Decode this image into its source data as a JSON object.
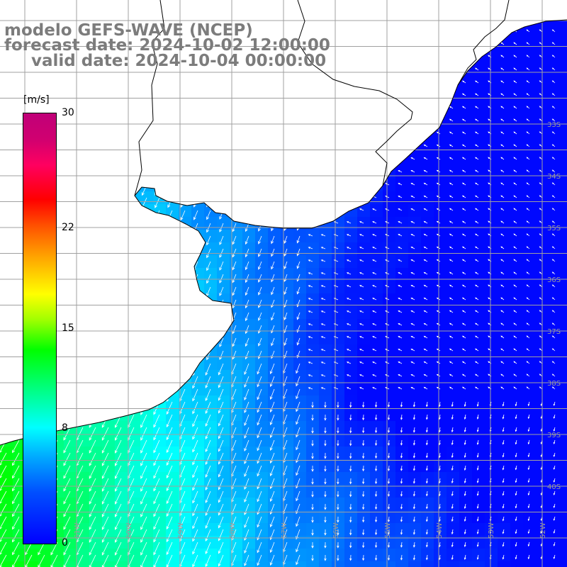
{
  "titles": {
    "model": "modelo GEFS-WAVE (NCEP)",
    "forecast": "forecast date: 2024-10-02 12:00:00",
    "valid": "valid date: 2024-10-04 00:00:00"
  },
  "colorbar": {
    "unit": "[m/s]",
    "ticks": [
      {
        "value": 30,
        "label": "30"
      },
      {
        "value": 22,
        "label": "22"
      },
      {
        "value": 15,
        "label": "15"
      },
      {
        "value": 8,
        "label": "8"
      },
      {
        "value": 0,
        "label": "0"
      }
    ],
    "range": [
      0,
      30
    ],
    "colors": [
      "#0000ff",
      "#00a8ff",
      "#00ffff",
      "#00ff00",
      "#ffff00",
      "#ff8000",
      "#ff0000",
      "#c00078"
    ]
  },
  "map": {
    "latitude_labels": [
      {
        "lat": -33,
        "label": "33S"
      },
      {
        "lat": -34,
        "label": "34S"
      },
      {
        "lat": -35,
        "label": "35S"
      },
      {
        "lat": -36,
        "label": "36S"
      },
      {
        "lat": -37,
        "label": "37S"
      },
      {
        "lat": -38,
        "label": "38S"
      },
      {
        "lat": -39,
        "label": "39S"
      },
      {
        "lat": -40,
        "label": "40S"
      }
    ],
    "longitude_labels": [
      {
        "lon": -62,
        "label": "62W"
      },
      {
        "lon": -61,
        "label": "61W"
      },
      {
        "lon": -60,
        "label": "60W"
      },
      {
        "lon": -59,
        "label": "59W"
      },
      {
        "lon": -58,
        "label": "58W"
      },
      {
        "lon": -57,
        "label": "57W"
      },
      {
        "lon": -56,
        "label": "56W"
      },
      {
        "lon": -55,
        "label": "55W"
      },
      {
        "lon": -54,
        "label": "54W"
      },
      {
        "lon": -53,
        "label": "53W"
      },
      {
        "lon": -52,
        "label": "52W"
      }
    ],
    "land_color": "#ffffff",
    "grid_color": "#a0a0a0",
    "coast_color": "#000000",
    "arrow_color": "#ffffff"
  }
}
